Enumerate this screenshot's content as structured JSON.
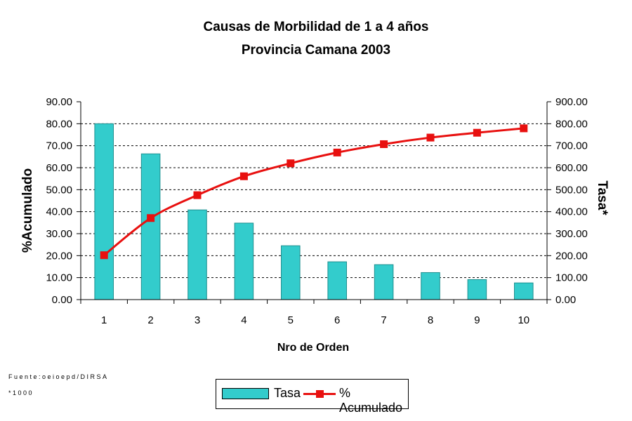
{
  "chart_data": {
    "type": "bar",
    "title": "Causas de Morbilidad de 1 a 4 años",
    "subtitle": "Provincia Camana 2003",
    "xlabel": "Nro de Orden",
    "ylabel_left": "%Acumulado",
    "ylabel_right": "Tasa*",
    "categories": [
      "1",
      "2",
      "3",
      "4",
      "5",
      "6",
      "7",
      "8",
      "9",
      "10"
    ],
    "ylim_left": [
      0,
      90
    ],
    "ylim_right": [
      0,
      900
    ],
    "yticks_left": [
      "0.00",
      "10.00",
      "20.00",
      "30.00",
      "40.00",
      "50.00",
      "60.00",
      "70.00",
      "80.00",
      "90.00"
    ],
    "yticks_right": [
      "0.00",
      "100.00",
      "200.00",
      "300.00",
      "400.00",
      "500.00",
      "600.00",
      "700.00",
      "800.00",
      "900.00"
    ],
    "grid": true,
    "legend_position": "bottom",
    "series": [
      {
        "name": "Tasa",
        "kind": "bar",
        "axis": "left",
        "color": "#33cccc",
        "values": [
          80.0,
          66.3,
          40.8,
          34.8,
          24.5,
          17.2,
          15.9,
          12.3,
          9.1,
          7.6
        ]
      },
      {
        "name": "% Acumulado",
        "kind": "line",
        "axis": "left",
        "color": "#e8100f",
        "values": [
          20.2,
          37.1,
          47.5,
          56.1,
          62.0,
          66.9,
          70.7,
          73.7,
          75.9,
          77.9
        ]
      }
    ]
  },
  "notes": {
    "source": "Fuente:oeioepd/DIRSA",
    "footnote": "*1000"
  }
}
